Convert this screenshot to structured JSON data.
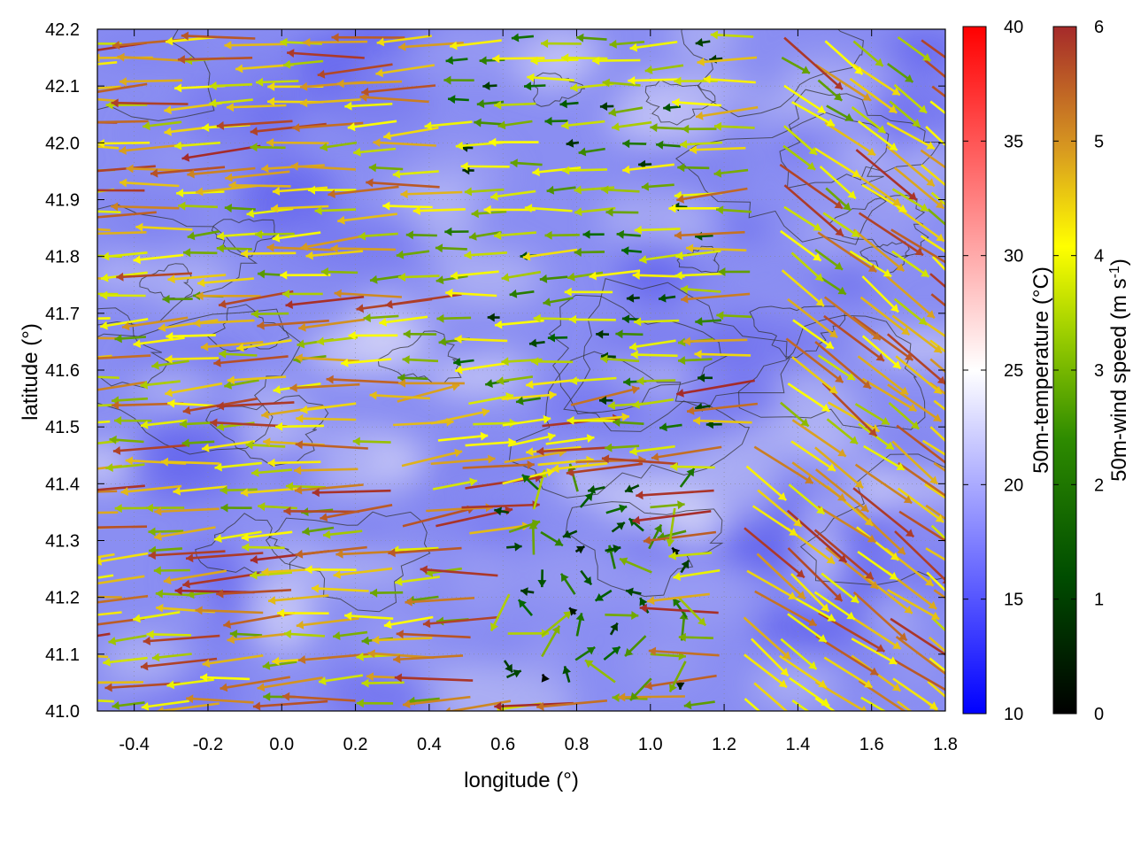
{
  "chart_data": {
    "type": "vector-field",
    "xlabel": "longitude (°)",
    "ylabel": "latitude (°)",
    "xlim": [
      -0.5,
      1.8
    ],
    "ylim": [
      41.0,
      42.2
    ],
    "xticks": [
      -0.4,
      -0.2,
      0.0,
      0.2,
      0.4,
      0.6,
      0.8,
      1.0,
      1.2,
      1.4,
      1.6,
      1.8
    ],
    "xtick_labels": [
      "-0.4",
      "-0.2",
      "0.0",
      "0.2",
      "0.4",
      "0.6",
      "0.8",
      "1.0",
      "1.2",
      "1.4",
      "1.6",
      "1.8"
    ],
    "yticks": [
      41.0,
      41.1,
      41.2,
      41.3,
      41.4,
      41.5,
      41.6,
      41.7,
      41.8,
      41.9,
      42.0,
      42.1,
      42.2
    ],
    "ytick_labels": [
      "41.0",
      "41.1",
      "41.2",
      "41.3",
      "41.4",
      "41.5",
      "41.6",
      "41.7",
      "41.8",
      "41.9",
      "42.0",
      "42.1",
      "42.2"
    ],
    "grid": true,
    "temperature_colorbar": {
      "label": "50m-temperature (°C)",
      "range": [
        10,
        40
      ],
      "ticks": [
        10,
        15,
        20,
        25,
        30,
        35,
        40
      ],
      "tick_labels": [
        "10",
        "15",
        "20",
        "25",
        "30",
        "35",
        "40"
      ],
      "colors": [
        "#0000ff",
        "#ffffff",
        "#ff0000"
      ]
    },
    "wind_colorbar": {
      "label": "50m-wind speed (m s-1)",
      "label_main": "50m-wind speed (m s",
      "label_sup": "-1",
      "label_end": ")",
      "range": [
        0,
        6
      ],
      "ticks": [
        0,
        1,
        2,
        3,
        4,
        5,
        6
      ],
      "tick_labels": [
        "0",
        "1",
        "2",
        "3",
        "4",
        "5",
        "6"
      ],
      "colors": [
        "#000000",
        "#006400",
        "#7fb000",
        "#ffff00",
        "#d8a020",
        "#a52a2a"
      ]
    },
    "temperature_field_approx_c": "mostly 15-22",
    "wind_field_regions": [
      {
        "lon": [
          -0.5,
          0.5
        ],
        "lat": [
          41.0,
          42.2
        ],
        "direction": "west",
        "speed_range": [
          2,
          6
        ]
      },
      {
        "lon": [
          0.5,
          1.2
        ],
        "lat": [
          41.5,
          42.2
        ],
        "direction": "west",
        "speed_range": [
          0.5,
          4
        ]
      },
      {
        "lon": [
          0.3,
          0.8
        ],
        "lat": [
          41.3,
          41.55
        ],
        "direction": "east",
        "speed_range": [
          3,
          6
        ]
      },
      {
        "lon": [
          0.6,
          1.1
        ],
        "lat": [
          41.05,
          41.4
        ],
        "direction": "mixed",
        "speed_range": [
          0,
          3
        ]
      },
      {
        "lon": [
          1.2,
          1.8
        ],
        "lat": [
          41.0,
          41.5
        ],
        "direction": "southeast",
        "speed_range": [
          3,
          6
        ]
      },
      {
        "lon": [
          1.3,
          1.8
        ],
        "lat": [
          41.5,
          42.2
        ],
        "direction": "southeast",
        "speed_range": [
          2,
          6
        ]
      }
    ]
  }
}
